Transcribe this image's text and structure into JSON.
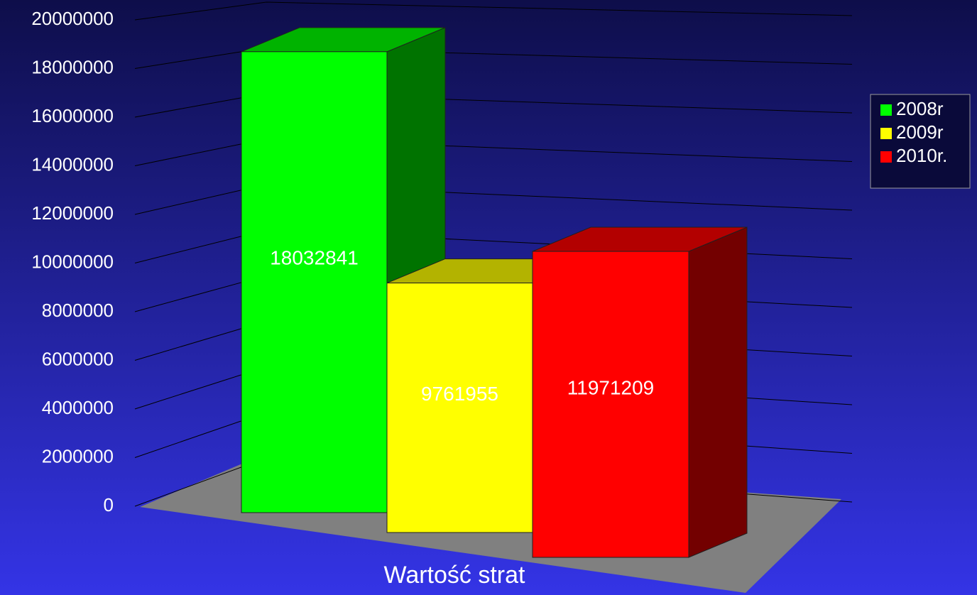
{
  "chart_data": {
    "type": "bar",
    "categories": [
      "Wartość strat"
    ],
    "series": [
      {
        "name": "2008r",
        "color": "#00ff00",
        "values": [
          18032841
        ]
      },
      {
        "name": "2009r",
        "color": "#ffff00",
        "values": [
          9761955
        ]
      },
      {
        "name": "2010r.",
        "color": "#ff0000",
        "values": [
          11971209
        ]
      }
    ],
    "ylim": [
      0,
      20000000
    ],
    "yticks": [
      0,
      2000000,
      4000000,
      6000000,
      8000000,
      10000000,
      12000000,
      14000000,
      16000000,
      18000000,
      20000000
    ],
    "grid": true,
    "legend": "right"
  }
}
